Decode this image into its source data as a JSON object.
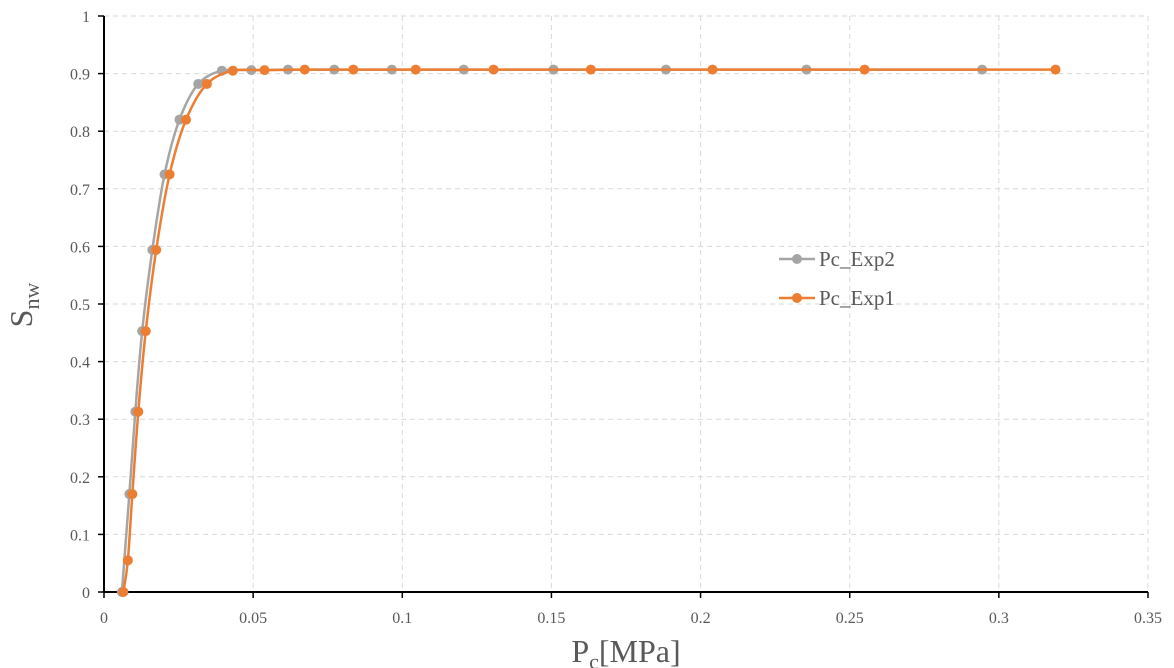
{
  "chart_data": {
    "type": "scatter",
    "xlabel_main": "P",
    "xlabel_sub": "c",
    "xlabel_tail": "[MPa]",
    "ylabel_main": "S",
    "ylabel_sub": "nw",
    "xlim": [
      0,
      0.35
    ],
    "ylim": [
      0,
      1
    ],
    "xticks": [
      0,
      0.05,
      0.1,
      0.15,
      0.2,
      0.25,
      0.3,
      0.35
    ],
    "xtick_labels": [
      "0",
      "0.05",
      "0.1",
      "0.15",
      "0.2",
      "0.25",
      "0.3",
      "0.35"
    ],
    "yticks": [
      0,
      0.1,
      0.2,
      0.3,
      0.4,
      0.5,
      0.6,
      0.7,
      0.8,
      0.9,
      1
    ],
    "ytick_labels": [
      "0",
      "0.1",
      "0.2",
      "0.3",
      "0.4",
      "0.5",
      "0.6",
      "0.7",
      "0.8",
      "0.9",
      "1"
    ],
    "grid": true,
    "legend_position": "right-center",
    "series": [
      {
        "name": "Pc_Exp2",
        "color": "#a5a5a5",
        "x": [
          0.006,
          0.0085,
          0.0105,
          0.0128,
          0.0162,
          0.0203,
          0.0253,
          0.0316,
          0.0395,
          0.0494,
          0.0617,
          0.0772,
          0.0965,
          0.1206,
          0.1507,
          0.1884,
          0.2355,
          0.2944
        ],
        "y": [
          0.0,
          0.17,
          0.313,
          0.453,
          0.594,
          0.725,
          0.82,
          0.882,
          0.905,
          0.906,
          0.907,
          0.907,
          0.907,
          0.907,
          0.907,
          0.907,
          0.907,
          0.907
        ]
      },
      {
        "name": "Pc_Exp1",
        "color": "#ed7d31",
        "x": [
          0.0065,
          0.008,
          0.0095,
          0.0115,
          0.014,
          0.0175,
          0.022,
          0.0275,
          0.0345,
          0.0432,
          0.0538,
          0.0673,
          0.0836,
          0.1045,
          0.1306,
          0.1632,
          0.204,
          0.255,
          0.319
        ],
        "y": [
          0.0,
          0.055,
          0.17,
          0.313,
          0.453,
          0.594,
          0.725,
          0.82,
          0.882,
          0.905,
          0.906,
          0.907,
          0.907,
          0.907,
          0.907,
          0.907,
          0.907,
          0.907,
          0.907
        ]
      }
    ]
  }
}
